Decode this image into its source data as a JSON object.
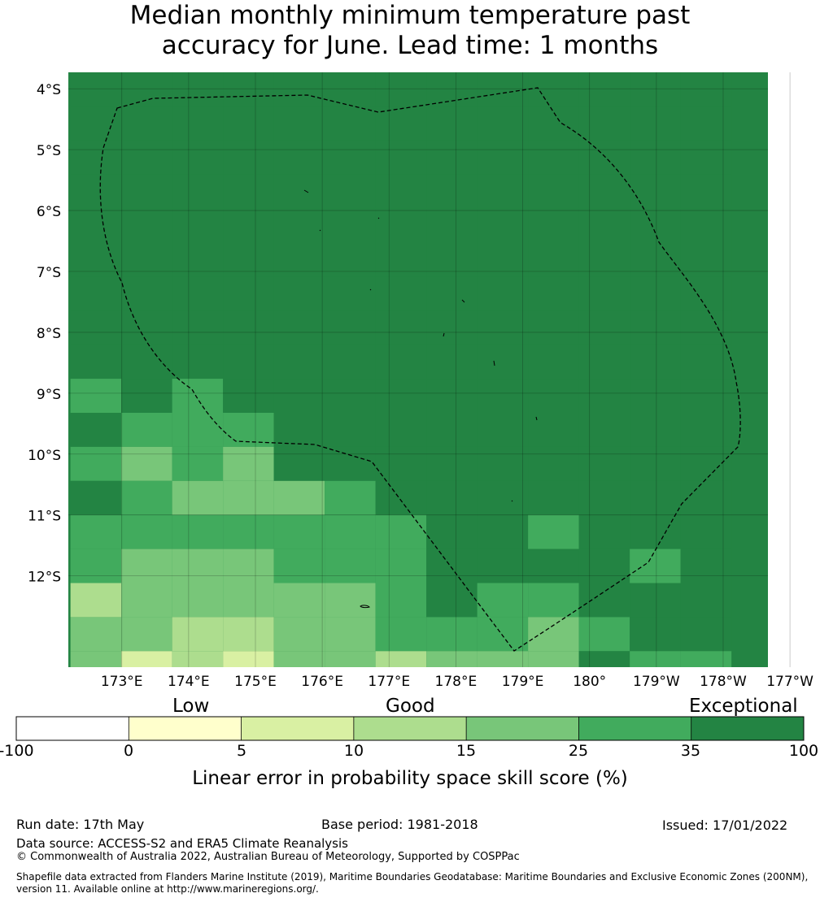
{
  "title_line1": "Median monthly minimum temperature past",
  "title_line2": "accuracy for June. Lead time: 1 months",
  "lat_labels": [
    "4°S",
    "5°S",
    "6°S",
    "7°S",
    "8°S",
    "9°S",
    "10°S",
    "11°S",
    "12°S"
  ],
  "lon_labels": [
    "173°E",
    "174°E",
    "175°E",
    "176°E",
    "177°E",
    "178°E",
    "179°E",
    "180°",
    "179°W",
    "178°W",
    "177°W"
  ],
  "map_extent": {
    "lon_min": 172.2,
    "lon_max": 182.67,
    "lat_max": -3.73,
    "lat_min": -13.5
  },
  "skill_grid": {
    "cell_degrees": 0.833,
    "origin_lon": 172.5,
    "origin_lat": -3.73,
    "note_classes": "0: 0-5, 1: 5-10, 2: 10-15, 3: 15-25, 4: 25-35, 5: 35-100",
    "rows": [
      [
        5,
        5,
        5,
        5,
        5,
        5,
        5,
        5,
        5,
        5,
        5,
        5,
        5
      ],
      [
        5,
        5,
        5,
        5,
        5,
        5,
        5,
        5,
        5,
        5,
        5,
        5,
        5
      ],
      [
        5,
        5,
        5,
        5,
        5,
        5,
        5,
        5,
        5,
        5,
        5,
        5,
        5
      ],
      [
        5,
        5,
        5,
        5,
        5,
        5,
        5,
        5,
        5,
        5,
        5,
        5,
        5
      ],
      [
        5,
        5,
        5,
        5,
        5,
        5,
        5,
        5,
        5,
        5,
        5,
        5,
        5
      ],
      [
        5,
        5,
        5,
        5,
        5,
        5,
        5,
        5,
        5,
        5,
        5,
        5,
        5
      ],
      [
        5,
        5,
        5,
        5,
        5,
        5,
        5,
        5,
        5,
        5,
        5,
        5,
        5
      ],
      [
        5,
        5,
        5,
        5,
        5,
        5,
        5,
        5,
        5,
        5,
        5,
        5,
        5
      ],
      [
        5,
        5,
        5,
        5,
        5,
        5,
        5,
        5,
        5,
        5,
        5,
        5,
        5
      ],
      [
        4,
        5,
        4,
        5,
        5,
        5,
        5,
        5,
        5,
        5,
        5,
        5,
        5
      ],
      [
        5,
        4,
        4,
        4,
        5,
        5,
        5,
        5,
        5,
        5,
        5,
        5,
        5
      ],
      [
        4,
        3,
        4,
        3,
        5,
        5,
        5,
        5,
        5,
        5,
        5,
        5,
        5
      ],
      [
        5,
        4,
        3,
        3,
        3,
        4,
        5,
        5,
        5,
        5,
        5,
        5,
        5
      ],
      [
        4,
        4,
        4,
        4,
        4,
        4,
        4,
        5,
        5,
        4,
        5,
        5,
        5
      ],
      [
        4,
        3,
        3,
        3,
        4,
        4,
        4,
        5,
        5,
        5,
        5,
        4,
        5
      ],
      [
        2,
        3,
        3,
        3,
        3,
        3,
        4,
        5,
        4,
        4,
        5,
        5,
        5
      ],
      [
        3,
        3,
        2,
        2,
        3,
        3,
        4,
        4,
        4,
        3,
        4,
        5,
        5
      ],
      [
        3,
        1,
        2,
        1,
        3,
        3,
        2,
        3,
        3,
        3,
        5,
        4,
        4
      ]
    ]
  },
  "colorbar": {
    "categories": [
      "Low",
      "Good",
      "Exceptional"
    ],
    "ticks": [
      "-100",
      "0",
      "5",
      "10",
      "15",
      "25",
      "35",
      "100"
    ],
    "colors": [
      "#ffffff",
      "#ffffcc",
      "#d9f0a3",
      "#addd8e",
      "#78c679",
      "#41ab5d",
      "#238443"
    ],
    "label": "Linear error in probability space skill score (%)"
  },
  "footer": {
    "run_date": "Run date: 17th May",
    "base_period": "Base period: 1981-2018",
    "issued": "Issued: 17/01/2022",
    "data_source": "Data source: ACCESS-S2 and ERA5 Climate Reanalysis",
    "copyright": "© Commonwealth of Australia 2022, Australian Bureau of Meteorology, Supported by COSPPac",
    "shapefile1": "Shapefile data extracted from Flanders Marine Institute (2019), Maritime Boundaries Geodatabase: Maritime Boundaries and Exclusive Economic Zones (200NM),",
    "shapefile2": "version 11. Available online at http://www.marineregions.org/."
  }
}
